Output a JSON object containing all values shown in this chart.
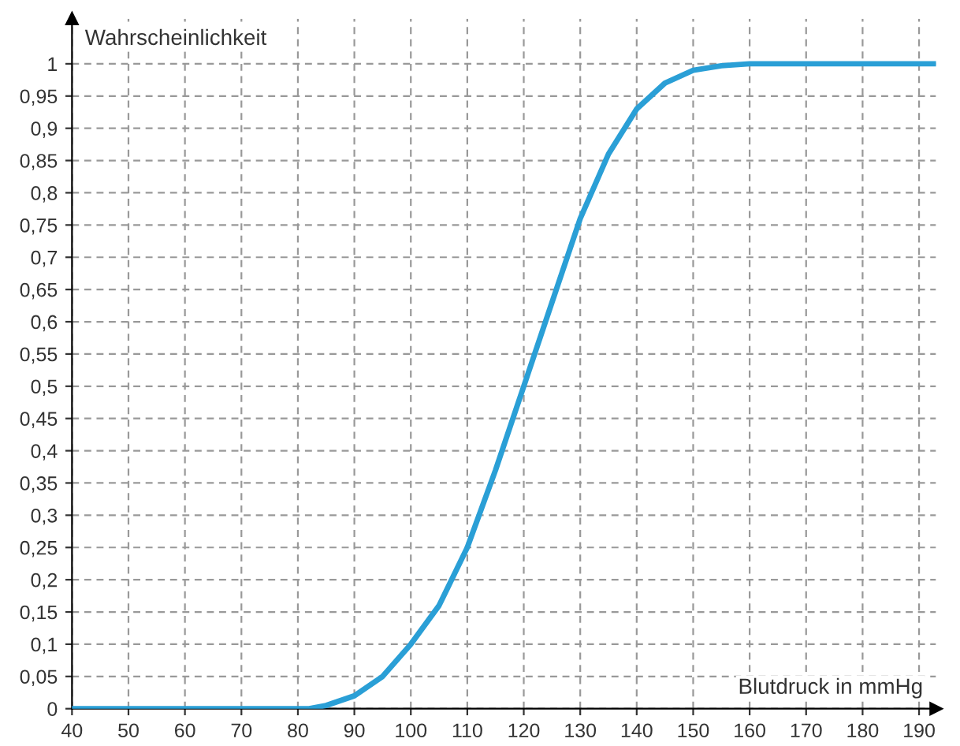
{
  "chart_data": {
    "type": "line",
    "xlabel": "Blutdruck in mmHg",
    "ylabel": "Wahrscheinlichkeit",
    "x": [
      40,
      50,
      60,
      70,
      80,
      82,
      85,
      90,
      95,
      100,
      105,
      110,
      115,
      120,
      125,
      130,
      135,
      140,
      145,
      150,
      155,
      160,
      170,
      180,
      190,
      193
    ],
    "series": [
      {
        "color": "#2a9fd6",
        "values": [
          0,
          0,
          0,
          0,
          0,
          0,
          0.005,
          0.02,
          0.05,
          0.1,
          0.16,
          0.25,
          0.37,
          0.5,
          0.63,
          0.76,
          0.86,
          0.93,
          0.97,
          0.99,
          0.997,
          1,
          1,
          1,
          1,
          1
        ]
      }
    ],
    "xlim": [
      40,
      193
    ],
    "ylim": [
      0,
      1.07
    ],
    "xticks": [
      40,
      50,
      60,
      70,
      80,
      90,
      100,
      110,
      120,
      130,
      140,
      150,
      160,
      170,
      180,
      190
    ],
    "yticks": [
      0,
      {
        "value": 0.05,
        "label": "0,05"
      },
      {
        "value": 0.1,
        "label": "0,1"
      },
      {
        "value": 0.15,
        "label": "0,15"
      },
      {
        "value": 0.2,
        "label": "0,2"
      },
      {
        "value": 0.25,
        "label": "0,25"
      },
      {
        "value": 0.3,
        "label": "0,3"
      },
      {
        "value": 0.35,
        "label": "0,35"
      },
      {
        "value": 0.4,
        "label": "0,4"
      },
      {
        "value": 0.45,
        "label": "0,45"
      },
      {
        "value": 0.5,
        "label": "0,5"
      },
      {
        "value": 0.55,
        "label": "0,55"
      },
      {
        "value": 0.6,
        "label": "0,6"
      },
      {
        "value": 0.65,
        "label": "0,65"
      },
      {
        "value": 0.7,
        "label": "0,7"
      },
      {
        "value": 0.75,
        "label": "0,75"
      },
      {
        "value": 0.8,
        "label": "0,8"
      },
      {
        "value": 0.85,
        "label": "0,85"
      },
      {
        "value": 0.9,
        "label": "0,9"
      },
      {
        "value": 0.95,
        "label": "0,95"
      },
      1
    ],
    "grid": true,
    "line_style": "solid",
    "marker": "none",
    "legend": false
  }
}
